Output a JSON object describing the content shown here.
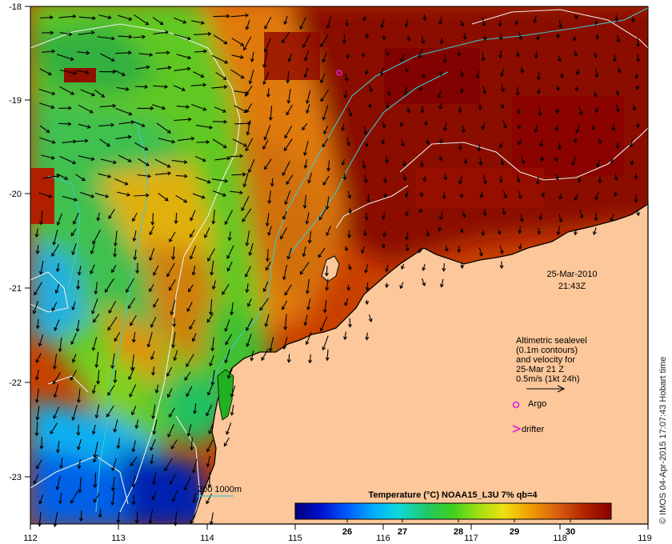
{
  "map": {
    "lon_ticks": [
      "112",
      "113",
      "114",
      "115",
      "116",
      "117",
      "118",
      "119"
    ],
    "lat_ticks": [
      "-18",
      "-19",
      "-20",
      "-21",
      "-22",
      "-23"
    ],
    "date": "25-Mar-2010",
    "time": "21:43Z",
    "altimetry_note": [
      "Altimetric sealevel",
      "(0.1m contours)",
      "and velocity for",
      "25-Mar 21 Z",
      "0.5m/s (1kt 24h)"
    ],
    "argo_label": "Argo",
    "drifter_label": "drifter",
    "bathy_label": "200  1000m",
    "colorbar_title": "Temperature (°C) NOAA15_L3U 7% qb=4",
    "colorbar_ticks": [
      "26",
      "27",
      "28",
      "29",
      "30"
    ],
    "credit": "© IMOS 04-Apr-2015 17:07:43 Hobart time",
    "colors": {
      "land": "#fcc79a",
      "contour": "#e8f0e8",
      "bathy": "#40c8c8",
      "argo": "#e020e0",
      "drifter": "#e020e0"
    },
    "colorbar_stops": [
      "#00007a",
      "#0010d0",
      "#0060ff",
      "#00b0ff",
      "#10d8d8",
      "#20c860",
      "#40d020",
      "#a0e010",
      "#f0e010",
      "#f0a000",
      "#d86010",
      "#b02000",
      "#8a0000"
    ]
  }
}
